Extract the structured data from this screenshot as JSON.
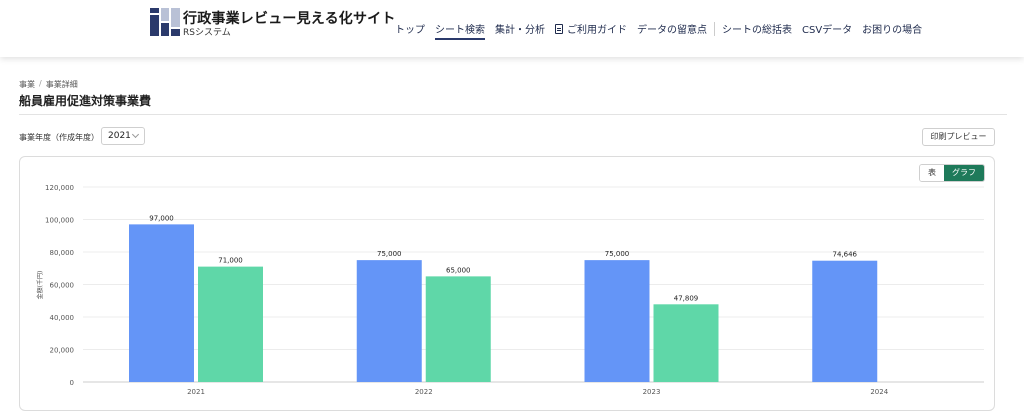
{
  "header": {
    "title": "行政事業レビュー見える化サイト",
    "subtitle": "RSシステム",
    "nav": [
      {
        "label": "トップ",
        "active": false
      },
      {
        "label": "シート検索",
        "active": true
      },
      {
        "label": "集計・分析",
        "active": false
      },
      {
        "label": "ご利用ガイド",
        "active": false,
        "icon": "document-icon"
      },
      {
        "label": "データの留意点",
        "active": false
      },
      {
        "label": "シートの総括表",
        "active": false
      },
      {
        "label": "CSVデータ",
        "active": false
      },
      {
        "label": "お困りの場合",
        "active": false
      }
    ]
  },
  "breadcrumb": [
    "事業",
    "事業詳細"
  ],
  "page_title": "船員雇用促進対策事業費",
  "filter": {
    "label": "事業年度（作成年度）",
    "selected": "2021"
  },
  "print_label": "印刷プレビュー",
  "view_toggle": {
    "table": "表",
    "graph": "グラフ",
    "selected": "グラフ"
  },
  "colors": {
    "series1": "#6495f7",
    "series2": "#5fd7a8",
    "accent": "#1e7a5a"
  },
  "chart_data": {
    "type": "bar",
    "categories": [
      "2021",
      "2022",
      "2023",
      "2024"
    ],
    "series": [
      {
        "values": [
          97000,
          75000,
          75000,
          74646
        ]
      },
      {
        "values": [
          71000,
          65000,
          47809,
          null
        ]
      }
    ],
    "ylabel": "金額(千円)",
    "ylim": [
      0,
      120000
    ],
    "yticks": [
      "0",
      "20,000",
      "40,000",
      "60,000",
      "80,000",
      "100,000",
      "120,000"
    ],
    "grid": true
  }
}
